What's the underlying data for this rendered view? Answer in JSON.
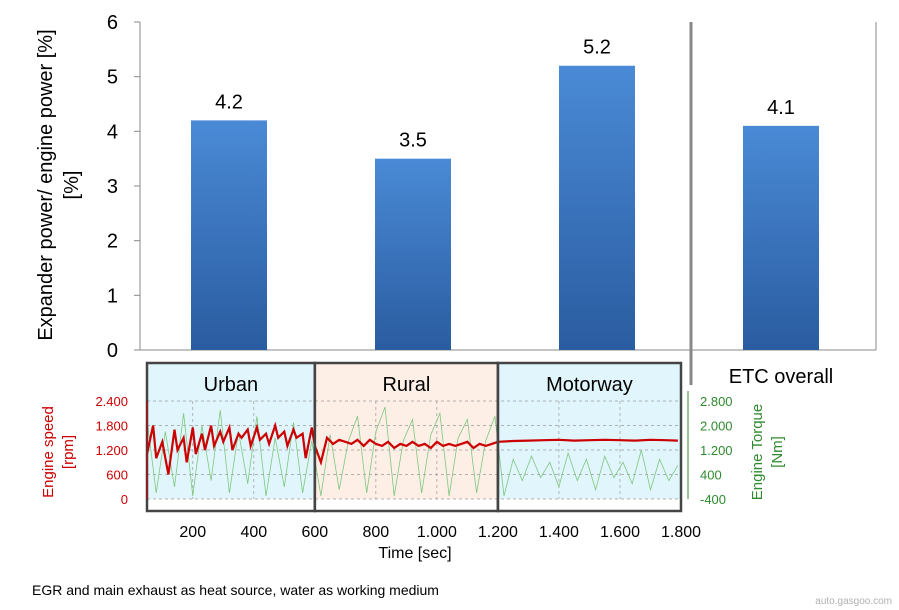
{
  "chart_data": [
    {
      "type": "bar",
      "ylabel_line1": "Expander power/ engine power [%]",
      "ylabel_line2": "[%]",
      "yticks": [
        "0",
        "1",
        "2",
        "3",
        "4",
        "5",
        "6"
      ],
      "ylim": [
        0,
        6
      ],
      "categories": [
        "Urban",
        "Rural",
        "Motorway",
        "ETC overall"
      ],
      "values": [
        4.2,
        3.5,
        5.2,
        4.1
      ],
      "value_labels": [
        "4.2",
        "3.5",
        "5.2",
        "4.1"
      ],
      "bar_color": "#3a78c0",
      "grid": false
    },
    {
      "type": "line",
      "xlabel": "Time [sec]",
      "xticks": [
        "200",
        "400",
        "600",
        "800",
        "1.000",
        "1.200",
        "1.400",
        "1.600",
        "1.800"
      ],
      "xtick_values": [
        200,
        400,
        600,
        800,
        1000,
        1200,
        1400,
        1600,
        1800
      ],
      "xlim": [
        50,
        1800
      ],
      "left_axis": {
        "label_line1": "Engine speed",
        "label_line2": "[rpm]",
        "ticks": [
          "0",
          "600",
          "1.200",
          "1.800",
          "2.400"
        ],
        "tick_values": [
          0,
          600,
          1200,
          1800,
          2400
        ],
        "range": [
          0,
          2400
        ],
        "color": "#cc0000"
      },
      "right_axis": {
        "label_line1": "Engine Torque",
        "label_line2": "[Nm]",
        "ticks": [
          "-400",
          "400",
          "1.200",
          "2.000",
          "2.800"
        ],
        "tick_values": [
          -400,
          400,
          1200,
          2000,
          2800
        ],
        "range": [
          -400,
          2800
        ],
        "color": "#2e8b2e"
      },
      "segments": [
        {
          "name": "Urban",
          "x_range": [
            50,
            600
          ],
          "color": "#e0f6fc"
        },
        {
          "name": "Rural",
          "x_range": [
            600,
            1200
          ],
          "color": "#fdeee6"
        },
        {
          "name": "Motorway",
          "x_range": [
            1200,
            1800
          ],
          "color": "#e0f6fc"
        }
      ],
      "series": [
        {
          "axis": "left",
          "color": "#cc0000",
          "x": [
            50,
            70,
            80,
            100,
            120,
            140,
            150,
            170,
            180,
            200,
            210,
            230,
            240,
            260,
            270,
            290,
            300,
            320,
            330,
            350,
            360,
            380,
            390,
            410,
            420,
            440,
            450,
            470,
            480,
            500,
            510,
            530,
            540,
            560,
            570,
            590,
            600,
            620,
            640,
            660,
            680,
            700,
            720,
            740,
            760,
            780,
            800,
            820,
            840,
            860,
            880,
            900,
            920,
            940,
            960,
            980,
            1000,
            1020,
            1040,
            1060,
            1080,
            1100,
            1120,
            1140,
            1160,
            1180,
            1200,
            1250,
            1300,
            1350,
            1400,
            1450,
            1500,
            1550,
            1600,
            1650,
            1700,
            1750,
            1790
          ],
          "y": [
            1100,
            1800,
            1000,
            1400,
            600,
            1700,
            1200,
            1500,
            900,
            1750,
            1100,
            1600,
            1200,
            1800,
            1300,
            1650,
            1400,
            1750,
            1200,
            1600,
            1500,
            1700,
            1300,
            1750,
            1450,
            1600,
            1350,
            1800,
            1500,
            1650,
            1300,
            1700,
            1500,
            1600,
            1000,
            1750,
            1300,
            900,
            1500,
            1350,
            1450,
            1400,
            1350,
            1450,
            1300,
            1450,
            1350,
            1300,
            1400,
            1250,
            1350,
            1300,
            1400,
            1300,
            1350,
            1250,
            1400,
            1300,
            1350,
            1300,
            1350,
            1400,
            1250,
            1350,
            1300,
            1350,
            1400,
            1420,
            1430,
            1440,
            1450,
            1430,
            1440,
            1450,
            1440,
            1430,
            1450,
            1440,
            1430
          ]
        },
        {
          "axis": "right",
          "color": "#7fc77f",
          "x": [
            50,
            80,
            110,
            140,
            170,
            200,
            230,
            260,
            290,
            320,
            350,
            380,
            410,
            440,
            470,
            500,
            530,
            560,
            590,
            620,
            650,
            680,
            710,
            740,
            770,
            800,
            830,
            860,
            890,
            920,
            950,
            980,
            1010,
            1040,
            1070,
            1100,
            1130,
            1160,
            1190,
            1220,
            1250,
            1280,
            1310,
            1340,
            1370,
            1400,
            1430,
            1460,
            1490,
            1520,
            1550,
            1580,
            1610,
            1640,
            1670,
            1700,
            1730,
            1760,
            1790
          ],
          "y": [
            2200,
            -200,
            1800,
            0,
            2400,
            -300,
            2000,
            200,
            2500,
            -200,
            1800,
            100,
            2300,
            -300,
            1600,
            0,
            2100,
            -200,
            1500,
            -300,
            1700,
            -100,
            1500,
            2300,
            -200,
            1800,
            2600,
            -300,
            1500,
            2200,
            -200,
            1700,
            2400,
            -300,
            1600,
            2200,
            -200,
            1500,
            2300,
            -300,
            900,
            200,
            1000,
            300,
            800,
            0,
            1100,
            200,
            900,
            -100,
            1000,
            300,
            800,
            100,
            1200,
            -100,
            900,
            200,
            700
          ]
        }
      ]
    }
  ],
  "footnote": "EGR and main exhaust as heat source, water as working medium",
  "watermark": "auto.gasgoo.com"
}
